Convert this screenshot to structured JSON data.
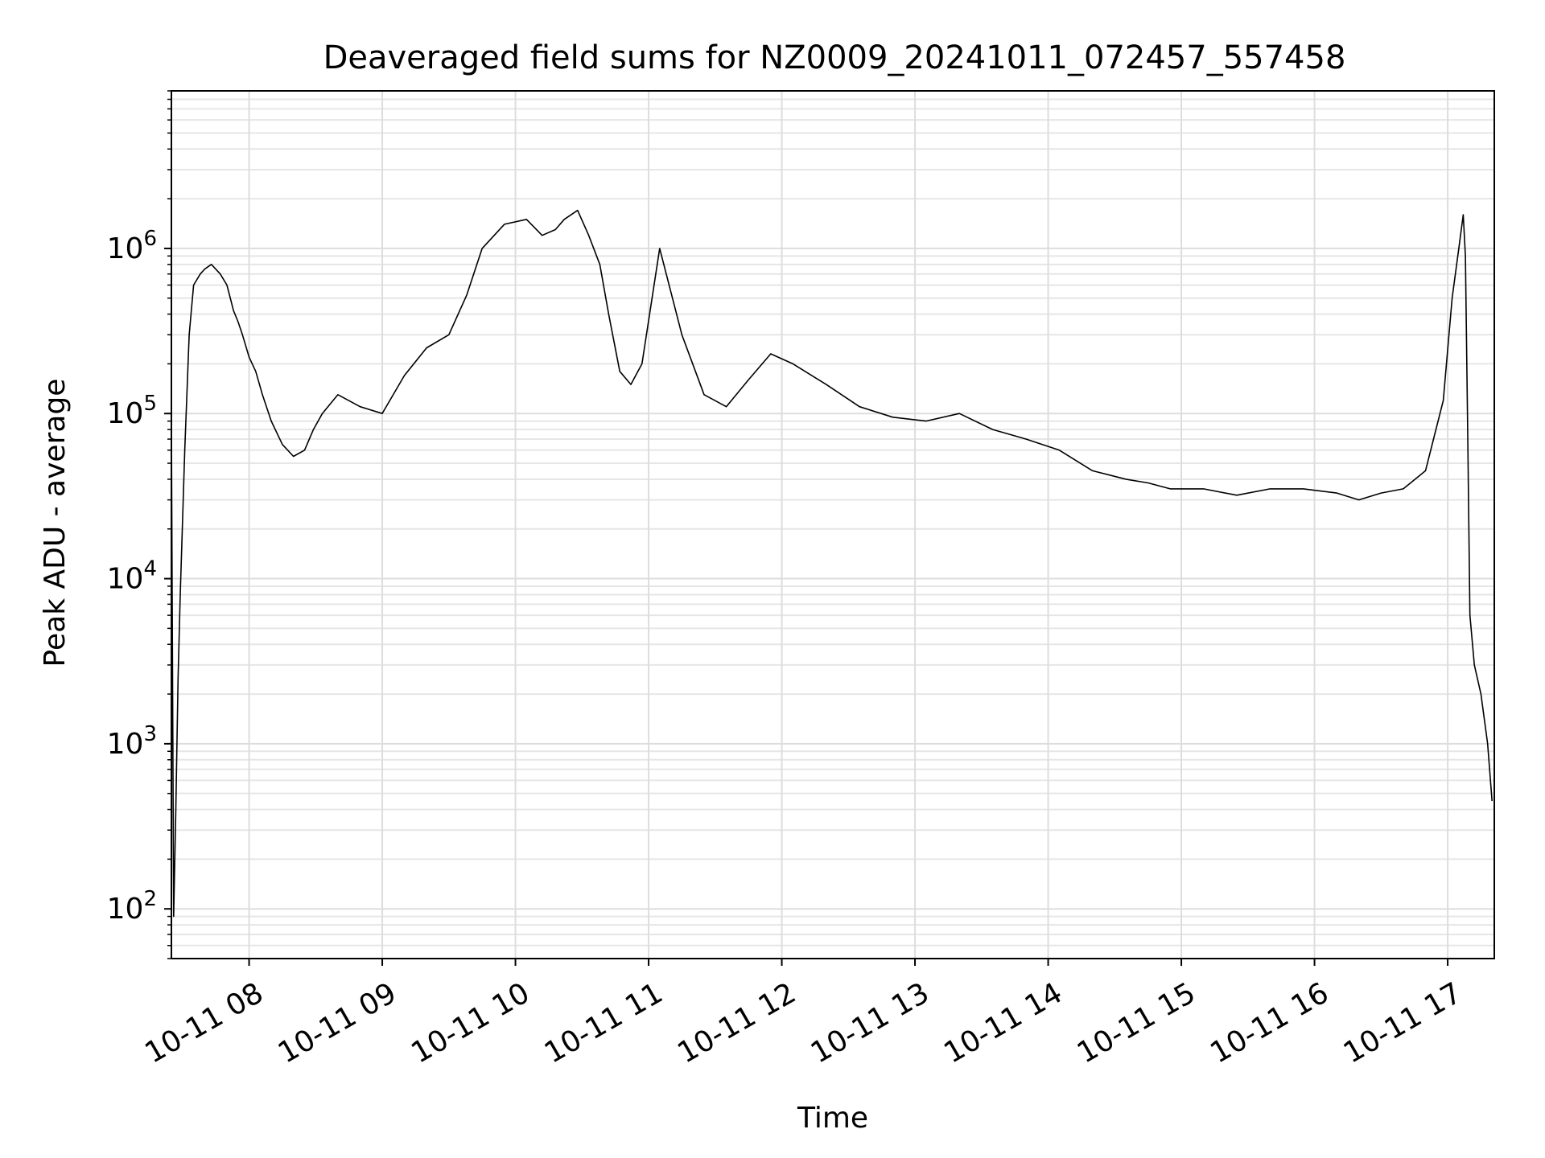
{
  "chart_data": {
    "type": "line",
    "title": "Deaveraged field sums for NZ0009_20241011_072457_557458",
    "xlabel": "Time",
    "ylabel": "Peak ADU - average",
    "yscale": "log",
    "ylim": [
      50,
      9000000
    ],
    "xlim": [
      "2024-10-11 07:25",
      "2024-10-11 17:21"
    ],
    "grid": true,
    "line_color": "#000000",
    "x_ticks": [
      "10-11 08",
      "10-11 09",
      "10-11 10",
      "10-11 11",
      "10-11 12",
      "10-11 13",
      "10-11 14",
      "10-11 15",
      "10-11 16",
      "10-11 17"
    ],
    "y_ticks": [
      {
        "value": 100,
        "base": "10",
        "exp": "2"
      },
      {
        "value": 1000,
        "base": "10",
        "exp": "3"
      },
      {
        "value": 10000,
        "base": "10",
        "exp": "4"
      },
      {
        "value": 100000,
        "base": "10",
        "exp": "5"
      },
      {
        "value": 1000000,
        "base": "10",
        "exp": "6"
      }
    ],
    "series": [
      {
        "x": [
          "07:25",
          "07:26",
          "07:27",
          "07:28",
          "07:29",
          "07:31",
          "07:33",
          "07:35",
          "07:38",
          "07:40",
          "07:43",
          "07:47",
          "07:50",
          "07:53",
          "07:55",
          "07:57",
          "08:00",
          "08:03",
          "08:06",
          "08:10",
          "08:15",
          "08:20",
          "08:25",
          "08:29",
          "08:33",
          "08:40",
          "08:50",
          "09:00",
          "09:10",
          "09:20",
          "09:30",
          "09:38",
          "09:45",
          "09:55",
          "10:05",
          "10:12",
          "10:18",
          "10:22",
          "10:28",
          "10:33",
          "10:38",
          "10:42",
          "10:47",
          "10:52",
          "10:57",
          "11:05",
          "11:15",
          "11:25",
          "11:35",
          "11:45",
          "11:55",
          "12:05",
          "12:20",
          "12:35",
          "12:50",
          "13:05",
          "13:20",
          "13:35",
          "13:50",
          "14:05",
          "14:20",
          "14:35",
          "14:45",
          "14:55",
          "15:10",
          "15:25",
          "15:40",
          "15:55",
          "16:10",
          "16:20",
          "16:30",
          "16:40",
          "16:50",
          "16:58",
          "17:02",
          "17:05",
          "17:07",
          "17:08",
          "17:09",
          "17:10",
          "17:12",
          "17:15",
          "17:18",
          "17:20"
        ],
        "y": [
          90000,
          90,
          400,
          2500,
          8000,
          60000,
          300000,
          600000,
          700000,
          750000,
          800000,
          700000,
          600000,
          420000,
          360000,
          300000,
          220000,
          180000,
          130000,
          90000,
          65000,
          55000,
          60000,
          80000,
          100000,
          130000,
          110000,
          100000,
          170000,
          250000,
          300000,
          520000,
          1000000,
          1400000,
          1500000,
          1200000,
          1300000,
          1500000,
          1700000,
          1200000,
          800000,
          400000,
          180000,
          150000,
          200000,
          1000000,
          300000,
          130000,
          110000,
          160000,
          230000,
          200000,
          150000,
          110000,
          95000,
          90000,
          100000,
          80000,
          70000,
          60000,
          45000,
          40000,
          38000,
          35000,
          35000,
          32000,
          35000,
          35000,
          33000,
          30000,
          33000,
          35000,
          45000,
          120000,
          500000,
          1000000,
          1600000,
          900000,
          80000,
          6000,
          3000,
          2000,
          1000,
          450
        ]
      }
    ]
  }
}
